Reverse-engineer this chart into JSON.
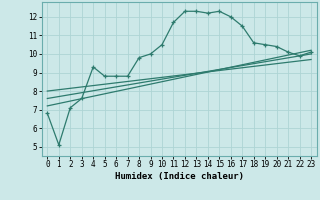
{
  "xlabel": "Humidex (Indice chaleur)",
  "bg_color": "#cce8e8",
  "line_color": "#2e7b6e",
  "grid_color": "#aed4d4",
  "xlim": [
    -0.5,
    23.5
  ],
  "ylim": [
    4.5,
    12.8
  ],
  "yticks": [
    5,
    6,
    7,
    8,
    9,
    10,
    11,
    12
  ],
  "xticks": [
    0,
    1,
    2,
    3,
    4,
    5,
    6,
    7,
    8,
    9,
    10,
    11,
    12,
    13,
    14,
    15,
    16,
    17,
    18,
    19,
    20,
    21,
    22,
    23
  ],
  "main_x": [
    0,
    1,
    2,
    3,
    4,
    5,
    6,
    7,
    8,
    9,
    10,
    11,
    12,
    13,
    14,
    15,
    16,
    17,
    18,
    19,
    20,
    21,
    22,
    23
  ],
  "main_y": [
    6.8,
    5.1,
    7.1,
    7.6,
    9.3,
    8.8,
    8.8,
    8.8,
    9.8,
    10.0,
    10.5,
    11.7,
    12.3,
    12.3,
    12.2,
    12.3,
    12.0,
    11.5,
    10.6,
    10.5,
    10.4,
    10.1,
    9.9,
    10.1
  ],
  "line2_x": [
    0,
    23
  ],
  "line2_y": [
    7.2,
    10.2
  ],
  "line3_x": [
    0,
    23
  ],
  "line3_y": [
    7.6,
    10.0
  ],
  "line4_x": [
    0,
    23
  ],
  "line4_y": [
    8.0,
    9.7
  ]
}
